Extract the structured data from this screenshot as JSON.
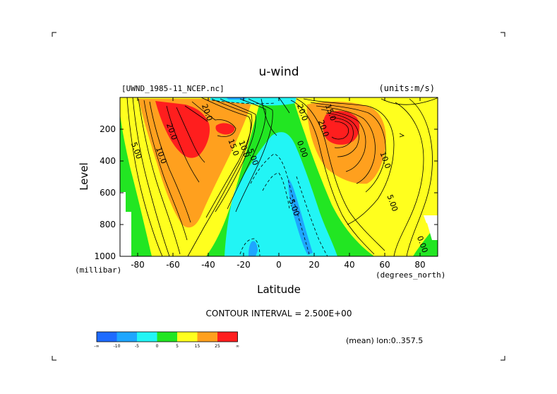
{
  "chart_data": {
    "type": "contour",
    "title": "u-wind",
    "subtitle_left": "[UWND_1985-11_NCEP.nc]",
    "subtitle_right": "(units:m/s)",
    "xlabel": "Latitude",
    "xunits": "(degrees_north)",
    "ylabel": "Level",
    "yunits": "(millibar)",
    "xlim": [
      -90,
      90
    ],
    "ylim": [
      1000,
      0
    ],
    "xticks": [
      -80,
      -60,
      -40,
      -20,
      0,
      20,
      40,
      60,
      80
    ],
    "xtick_labels": [
      "-80",
      "-60",
      "-40",
      "-20",
      "0",
      "20",
      "40",
      "60",
      "80"
    ],
    "yticks": [
      200,
      400,
      600,
      800,
      1000
    ],
    "ytick_labels": [
      "200",
      "400",
      "600",
      "800",
      "1000"
    ],
    "contour_interval_text": "CONTOUR INTERVAL = 2.500E+00",
    "mean_text": "(mean) lon:0..357.5",
    "contour_labels": [
      {
        "text": "20.0",
        "x": 12,
        "y": 100
      },
      {
        "text": "5.00",
        "x": -82,
        "y": 340
      },
      {
        "text": "10.0",
        "x": -68,
        "y": 370
      },
      {
        "text": "20.0",
        "x": -62,
        "y": 220
      },
      {
        "text": "20.0",
        "x": -42,
        "y": 100
      },
      {
        "text": "15.0",
        "x": -27,
        "y": 320
      },
      {
        "text": "10.0",
        "x": -21,
        "y": 330
      },
      {
        "text": "5.00",
        "x": -16,
        "y": 380
      },
      {
        "text": "0.00",
        "x": 12,
        "y": 330
      },
      {
        "text": "-5.00",
        "x": 7,
        "y": 690
      },
      {
        "text": "15.0",
        "x": 28,
        "y": 100
      },
      {
        "text": "20.0",
        "x": 24,
        "y": 200
      },
      {
        "text": "10.0",
        "x": 59,
        "y": 400
      },
      {
        "text": "5.00",
        "x": 63,
        "y": 670
      },
      {
        "text": "0.00",
        "x": 80,
        "y": 930
      }
    ],
    "colorbar": {
      "colors": [
        "#1e6bff",
        "#1ea6ff",
        "#22f5f5",
        "#22e622",
        "#ffff1e",
        "#ffa01e",
        "#ff1e1e"
      ],
      "labels": [
        "-∞",
        "-10",
        "-5",
        "0",
        "5",
        "15",
        "25",
        "∞"
      ]
    },
    "fill_colors": {
      "neg10": "#1e6bff",
      "neg5": "#1ea6ff",
      "neg0": "#22f5f5",
      "pos0": "#22e622",
      "pos5": "#ffff1e",
      "pos15": "#ffa01e",
      "pos25": "#ff1e1e"
    }
  }
}
